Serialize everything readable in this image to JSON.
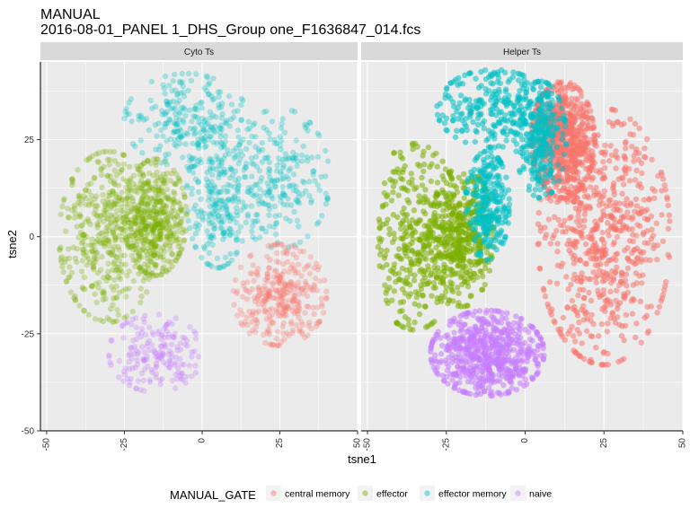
{
  "title": "MANUAL",
  "subtitle": "2016-08-01_PANEL 1_DHS_Group one_F1636847_014.fcs",
  "colors": {
    "central memory": "#F8766D",
    "effector": "#7CAE00",
    "effector memory": "#00BFC4",
    "naive": "#C77CFF",
    "panel_bg": "#EBEBEB",
    "strip_bg": "#D9D9D9",
    "grid": "#FFFFFF"
  },
  "chart_data": {
    "type": "scatter",
    "xlabel": "tsne1",
    "ylabel": "tsne2",
    "xlim": [
      -52,
      50
    ],
    "ylim": [
      -50,
      45
    ],
    "x_ticks": [
      -50,
      -25,
      0,
      25,
      50
    ],
    "y_ticks": [
      -50,
      -25,
      0,
      25
    ],
    "x_tick_labels": [
      "-50",
      "-25",
      "0",
      "25",
      "50"
    ],
    "y_tick_labels": [
      "-50",
      "-25",
      "0",
      "25"
    ],
    "grid": true,
    "legend": {
      "title": "MANUAL_GATE",
      "position": "bottom",
      "entries": [
        "central memory",
        "effector",
        "effector memory",
        "naive"
      ]
    },
    "facets": [
      {
        "label": "Cyto Ts",
        "point_alpha": 0.3,
        "clusters": [
          {
            "series": "effector",
            "n": 900,
            "ellipses": [
              [
                -30,
                0,
                16,
                22
              ],
              [
                -15,
                5,
                10,
                15
              ]
            ]
          },
          {
            "series": "effector memory",
            "n": 700,
            "ellipses": [
              [
                -5,
                30,
                20,
                12
              ],
              [
                5,
                10,
                10,
                18
              ],
              [
                25,
                15,
                16,
                18
              ]
            ]
          },
          {
            "series": "central memory",
            "n": 320,
            "ellipses": [
              [
                25,
                -15,
                15,
                13
              ]
            ]
          },
          {
            "series": "naive",
            "n": 180,
            "ellipses": [
              [
                -15,
                -30,
                15,
                10
              ]
            ]
          }
        ]
      },
      {
        "label": "Helper Ts",
        "point_alpha": 0.55,
        "clusters": [
          {
            "series": "central memory",
            "n": 1300,
            "ellipses": [
              [
                25,
                0,
                21,
                33
              ],
              [
                12,
                25,
                10,
                15
              ]
            ]
          },
          {
            "series": "effector",
            "n": 800,
            "ellipses": [
              [
                -35,
                0,
                15,
                24
              ],
              [
                -20,
                0,
                10,
                18
              ]
            ]
          },
          {
            "series": "effector memory",
            "n": 800,
            "ellipses": [
              [
                -10,
                33,
                18,
                10
              ],
              [
                -12,
                8,
                7,
                14
              ],
              [
                5,
                25,
                8,
                15
              ]
            ]
          },
          {
            "series": "naive",
            "n": 600,
            "ellipses": [
              [
                -12,
                -30,
                18,
                11
              ]
            ]
          }
        ]
      }
    ]
  }
}
